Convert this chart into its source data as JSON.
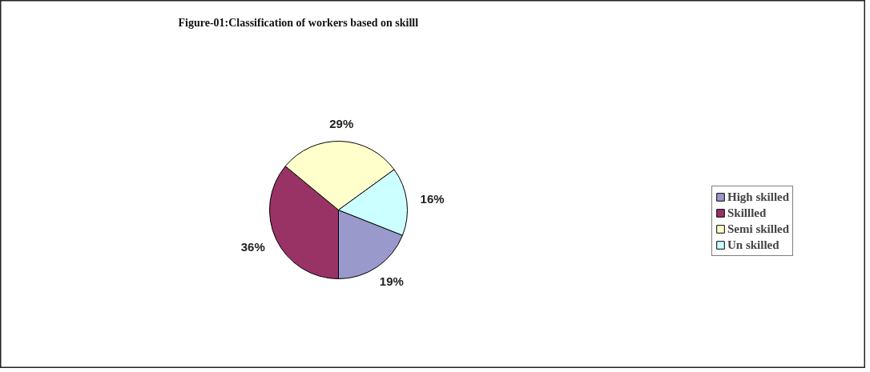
{
  "chart_data": {
    "type": "pie",
    "title": "Figure-01:Classification of workers based on skilll",
    "categories": [
      "High skilled",
      "Skillled",
      "Semi skilled",
      "Un skilled"
    ],
    "values": [
      19,
      36,
      29,
      16
    ],
    "colors": [
      "#9999cc",
      "#993366",
      "#ffffcc",
      "#ccffff"
    ],
    "value_labels": [
      "19%",
      "36%",
      "29%",
      "16%"
    ],
    "legend": "right"
  }
}
